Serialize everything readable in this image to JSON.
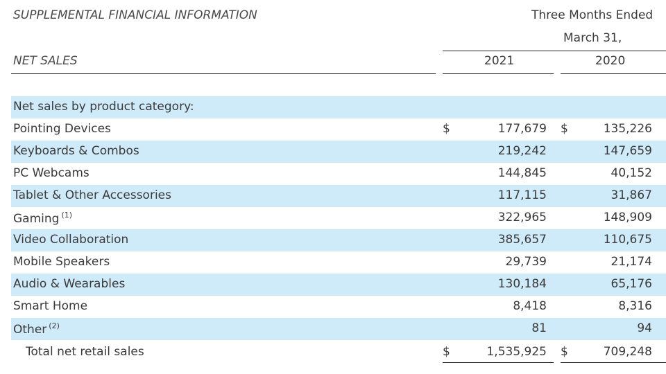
{
  "header": {
    "title": "SUPPLEMENTAL FINANCIAL INFORMATION",
    "period_line1": "Three Months Ended",
    "period_line2": "March 31,",
    "section_label": "NET SALES",
    "years": [
      "2021",
      "2020"
    ]
  },
  "category_heading": "Net sales by product category:",
  "rows": [
    {
      "label": "Pointing Devices",
      "footnote": "",
      "v2021": "177,679",
      "v2020": "135,226",
      "dollar": "$"
    },
    {
      "label": "Keyboards & Combos",
      "footnote": "",
      "v2021": "219,242",
      "v2020": "147,659",
      "dollar": ""
    },
    {
      "label": "PC Webcams",
      "footnote": "",
      "v2021": "144,845",
      "v2020": "40,152",
      "dollar": ""
    },
    {
      "label": "Tablet & Other Accessories",
      "footnote": "",
      "v2021": "117,115",
      "v2020": "31,867",
      "dollar": ""
    },
    {
      "label": "Gaming",
      "footnote": "(1)",
      "v2021": "322,965",
      "v2020": "148,909",
      "dollar": ""
    },
    {
      "label": "Video Collaboration",
      "footnote": "",
      "v2021": "385,657",
      "v2020": "110,675",
      "dollar": ""
    },
    {
      "label": "Mobile Speakers",
      "footnote": "",
      "v2021": "29,739",
      "v2020": "21,174",
      "dollar": ""
    },
    {
      "label": "Audio & Wearables",
      "footnote": "",
      "v2021": "130,184",
      "v2020": "65,176",
      "dollar": ""
    },
    {
      "label": "Smart Home",
      "footnote": "",
      "v2021": "8,418",
      "v2020": "8,316",
      "dollar": ""
    },
    {
      "label": "Other",
      "footnote": "(2)",
      "v2021": "81",
      "v2020": "94",
      "dollar": ""
    }
  ],
  "total": {
    "label": "Total net retail sales",
    "v2021": "1,535,925",
    "v2020": "709,248",
    "dollar": "$"
  },
  "colors": {
    "band": "#cfeaf9",
    "text": "#3a3a3a"
  }
}
